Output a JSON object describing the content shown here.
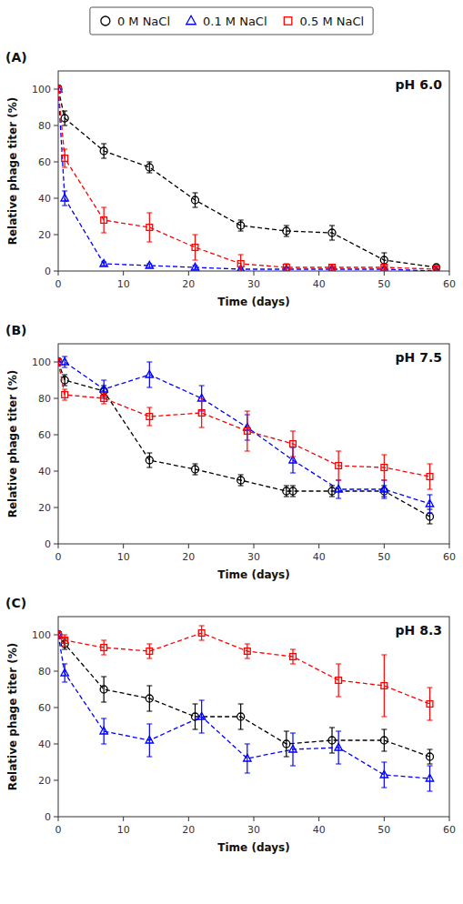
{
  "chart_data": [
    {
      "type": "line",
      "annotations": [
        "(A)",
        "pH 6.0"
      ],
      "xlabel": "Time (days)",
      "ylabel": "Relative phage titer (%)",
      "xlim": [
        0,
        60
      ],
      "ylim": [
        0,
        110
      ],
      "xticks": [
        0,
        10,
        20,
        30,
        40,
        50,
        60
      ],
      "yticks": [
        0,
        20,
        40,
        60,
        80,
        100
      ],
      "grid": false,
      "legend": "top",
      "series": [
        {
          "name": "0 M NaCl",
          "color": "black",
          "marker": "circle",
          "line_style": "dashed",
          "x": [
            0,
            1,
            7,
            14,
            21,
            28,
            35,
            42,
            50,
            58
          ],
          "values": [
            100,
            84,
            66,
            57,
            39,
            25,
            22,
            21,
            6,
            2
          ],
          "errors": [
            2,
            4,
            4,
            3,
            4,
            3,
            3,
            4,
            4,
            1
          ]
        },
        {
          "name": "0.1 M NaCl",
          "color": "blue",
          "marker": "triangle",
          "line_style": "dashed",
          "x": [
            0,
            1,
            7,
            14,
            21,
            28,
            35,
            42,
            50,
            58
          ],
          "values": [
            100,
            40,
            4,
            3,
            2,
            1,
            1,
            1,
            1,
            0
          ],
          "errors": [
            2,
            4,
            1,
            1,
            1,
            1,
            1,
            1,
            1,
            0
          ]
        },
        {
          "name": "0.5 M NaCl",
          "color": "red",
          "marker": "square",
          "line_style": "dashed",
          "x": [
            0,
            1,
            7,
            14,
            21,
            28,
            35,
            42,
            50,
            58
          ],
          "values": [
            100,
            62,
            28,
            24,
            13,
            4,
            2,
            2,
            2,
            1
          ],
          "errors": [
            2,
            5,
            7,
            8,
            7,
            5,
            2,
            1,
            1,
            1
          ]
        }
      ]
    },
    {
      "type": "line",
      "annotations": [
        "(B)",
        "pH 7.5"
      ],
      "xlabel": "Time (days)",
      "ylabel": "Relative phage titer (%)",
      "xlim": [
        0,
        60
      ],
      "ylim": [
        0,
        110
      ],
      "xticks": [
        0,
        10,
        20,
        30,
        40,
        50,
        60
      ],
      "yticks": [
        0,
        20,
        40,
        60,
        80,
        100
      ],
      "grid": false,
      "series": [
        {
          "name": "0 M NaCl",
          "color": "black",
          "marker": "circle",
          "line_style": "dashed",
          "x": [
            0,
            1,
            7,
            14,
            21,
            28,
            35,
            36,
            42,
            50,
            57
          ],
          "values": [
            100,
            90,
            84,
            46,
            41,
            35,
            29,
            29,
            29,
            29,
            15
          ],
          "errors": [
            2,
            3,
            3,
            4,
            3,
            3,
            3,
            3,
            3,
            3,
            4
          ]
        },
        {
          "name": "0.1 M NaCl",
          "color": "blue",
          "marker": "triangle",
          "line_style": "dashed",
          "x": [
            0,
            1,
            7,
            14,
            22,
            29,
            36,
            43,
            50,
            57
          ],
          "values": [
            100,
            100,
            85,
            93,
            80,
            64,
            46,
            30,
            30,
            22
          ],
          "errors": [
            2,
            3,
            5,
            7,
            7,
            7,
            7,
            5,
            5,
            5
          ]
        },
        {
          "name": "0.5 M NaCl",
          "color": "red",
          "marker": "square",
          "line_style": "dashed",
          "x": [
            0,
            1,
            7,
            14,
            22,
            29,
            36,
            43,
            50,
            57
          ],
          "values": [
            100,
            82,
            80,
            70,
            72,
            62,
            55,
            43,
            42,
            37
          ],
          "errors": [
            2,
            3,
            3,
            5,
            8,
            11,
            7,
            8,
            7,
            7
          ]
        }
      ]
    },
    {
      "type": "line",
      "annotations": [
        "(C)",
        "pH 8.3"
      ],
      "xlabel": "Time (days)",
      "ylabel": "Relative phage titer (%)",
      "xlim": [
        0,
        60
      ],
      "ylim": [
        0,
        110
      ],
      "xticks": [
        0,
        10,
        20,
        30,
        40,
        50,
        60
      ],
      "yticks": [
        0,
        20,
        40,
        60,
        80,
        100
      ],
      "grid": false,
      "series": [
        {
          "name": "0 M NaCl",
          "color": "black",
          "marker": "circle",
          "line_style": "dashed",
          "x": [
            0,
            1,
            7,
            14,
            21,
            28,
            35,
            42,
            50,
            57
          ],
          "values": [
            100,
            95,
            70,
            65,
            55,
            55,
            40,
            42,
            42,
            33
          ],
          "errors": [
            2,
            3,
            7,
            7,
            7,
            7,
            7,
            7,
            6,
            4
          ]
        },
        {
          "name": "0.1 M NaCl",
          "color": "blue",
          "marker": "triangle",
          "line_style": "dashed",
          "x": [
            0,
            1,
            7,
            14,
            22,
            29,
            36,
            43,
            50,
            57
          ],
          "values": [
            100,
            79,
            47,
            42,
            55,
            32,
            37,
            38,
            23,
            21
          ],
          "errors": [
            2,
            5,
            7,
            9,
            9,
            8,
            9,
            9,
            7,
            7
          ]
        },
        {
          "name": "0.5 M NaCl",
          "color": "red",
          "marker": "square",
          "line_style": "dashed",
          "x": [
            0,
            1,
            7,
            14,
            22,
            29,
            36,
            43,
            50,
            57
          ],
          "values": [
            100,
            97,
            93,
            91,
            101,
            91,
            88,
            75,
            72,
            62
          ],
          "errors": [
            2,
            3,
            4,
            4,
            4,
            4,
            4,
            9,
            17,
            9
          ]
        }
      ]
    }
  ]
}
